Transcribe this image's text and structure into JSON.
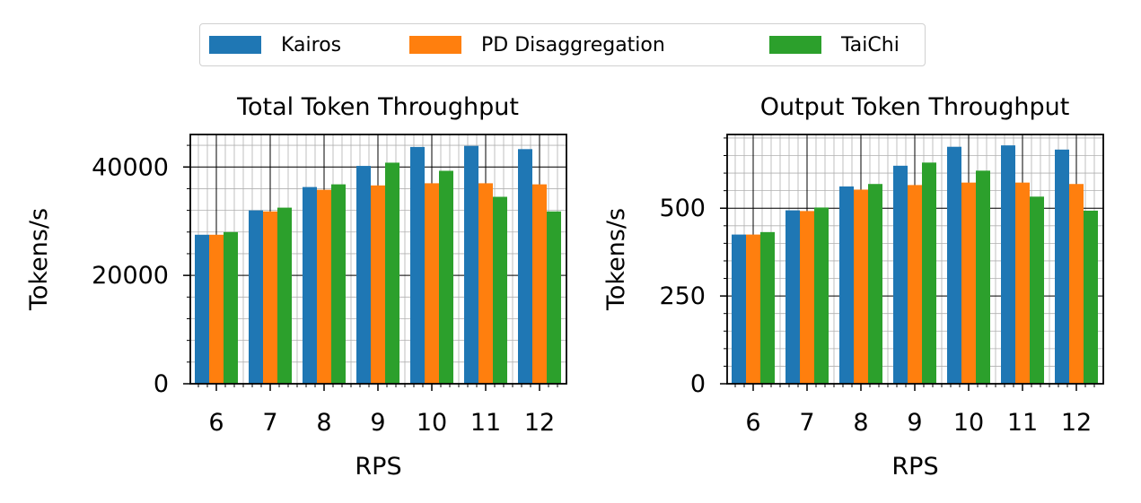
{
  "legend": [
    {
      "name": "Kairos",
      "color": "#1f77b4"
    },
    {
      "name": "PD Disaggregation",
      "color": "#ff7f0e"
    },
    {
      "name": "TaiChi",
      "color": "#2ca02c"
    }
  ],
  "chart_data": [
    {
      "type": "bar",
      "title": "Total Token Throughput",
      "xlabel": "RPS",
      "ylabel": "Tokens/s",
      "categories": [
        "6",
        "7",
        "8",
        "9",
        "10",
        "11",
        "12"
      ],
      "ylim": [
        0,
        46000
      ],
      "yticks": [
        0,
        20000,
        40000
      ],
      "grid": true,
      "legend_position": "top-center",
      "series": [
        {
          "name": "Kairos",
          "values": [
            27500,
            32000,
            36300,
            40200,
            43700,
            43900,
            43300
          ]
        },
        {
          "name": "PD Disaggregation",
          "values": [
            27500,
            31800,
            35800,
            36600,
            37000,
            37000,
            36800
          ]
        },
        {
          "name": "TaiChi",
          "values": [
            28000,
            32500,
            36800,
            40800,
            39300,
            34500,
            31800
          ]
        }
      ]
    },
    {
      "type": "bar",
      "title": "Output Token Throughput",
      "xlabel": "RPS",
      "ylabel": "Tokens/s",
      "categories": [
        "6",
        "7",
        "8",
        "9",
        "10",
        "11",
        "12"
      ],
      "ylim": [
        0,
        710
      ],
      "yticks": [
        0,
        250,
        500
      ],
      "grid": true,
      "legend_position": "top-center",
      "series": [
        {
          "name": "Kairos",
          "values": [
            425,
            494,
            562,
            621,
            675,
            679,
            667
          ]
        },
        {
          "name": "PD Disaggregation",
          "values": [
            425,
            492,
            553,
            566,
            573,
            573,
            569
          ]
        },
        {
          "name": "TaiChi",
          "values": [
            432,
            502,
            569,
            630,
            607,
            533,
            493
          ]
        }
      ]
    }
  ]
}
